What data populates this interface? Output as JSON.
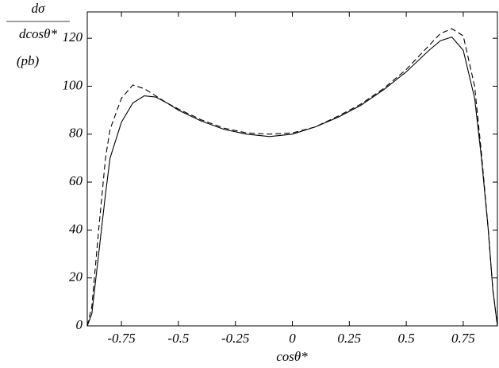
{
  "chart_data": {
    "type": "line",
    "x_label": "cosθ*",
    "y_label_lines": [
      "dσ",
      "dcosθ*",
      "(pb)"
    ],
    "x": [
      -0.9,
      -0.88,
      -0.85,
      -0.82,
      -0.8,
      -0.75,
      -0.7,
      -0.65,
      -0.6,
      -0.55,
      -0.5,
      -0.4,
      -0.3,
      -0.2,
      -0.1,
      0,
      0.1,
      0.2,
      0.3,
      0.4,
      0.5,
      0.6,
      0.65,
      0.7,
      0.75,
      0.8,
      0.83,
      0.86,
      0.88,
      0.9
    ],
    "series": [
      {
        "color": "#000000",
        "style": "solid",
        "values": [
          0,
          5,
          30,
          55,
          70,
          85,
          93,
          96,
          95.5,
          93,
          90,
          85.5,
          82,
          80,
          79,
          80,
          83,
          87,
          92,
          98.5,
          106,
          115,
          119,
          120.5,
          115,
          95,
          70,
          40,
          15,
          0
        ]
      },
      {
        "color": "#000000",
        "style": "dashed",
        "values": [
          0,
          8,
          40,
          70,
          82,
          95,
          100.5,
          99,
          96,
          93,
          90.5,
          86,
          82.5,
          80.5,
          80,
          80.5,
          83,
          87.5,
          92.5,
          99,
          107,
          117,
          122,
          124,
          121,
          100,
          72,
          40,
          15,
          0
        ]
      }
    ],
    "xlim": [
      -0.9,
      0.9
    ],
    "xticks": [
      -0.75,
      -0.5,
      -0.25,
      0,
      0.25,
      0.5,
      0.75
    ],
    "ylim": [
      0,
      131
    ],
    "yticks": [
      0,
      20,
      40,
      60,
      80,
      100,
      120
    ]
  }
}
